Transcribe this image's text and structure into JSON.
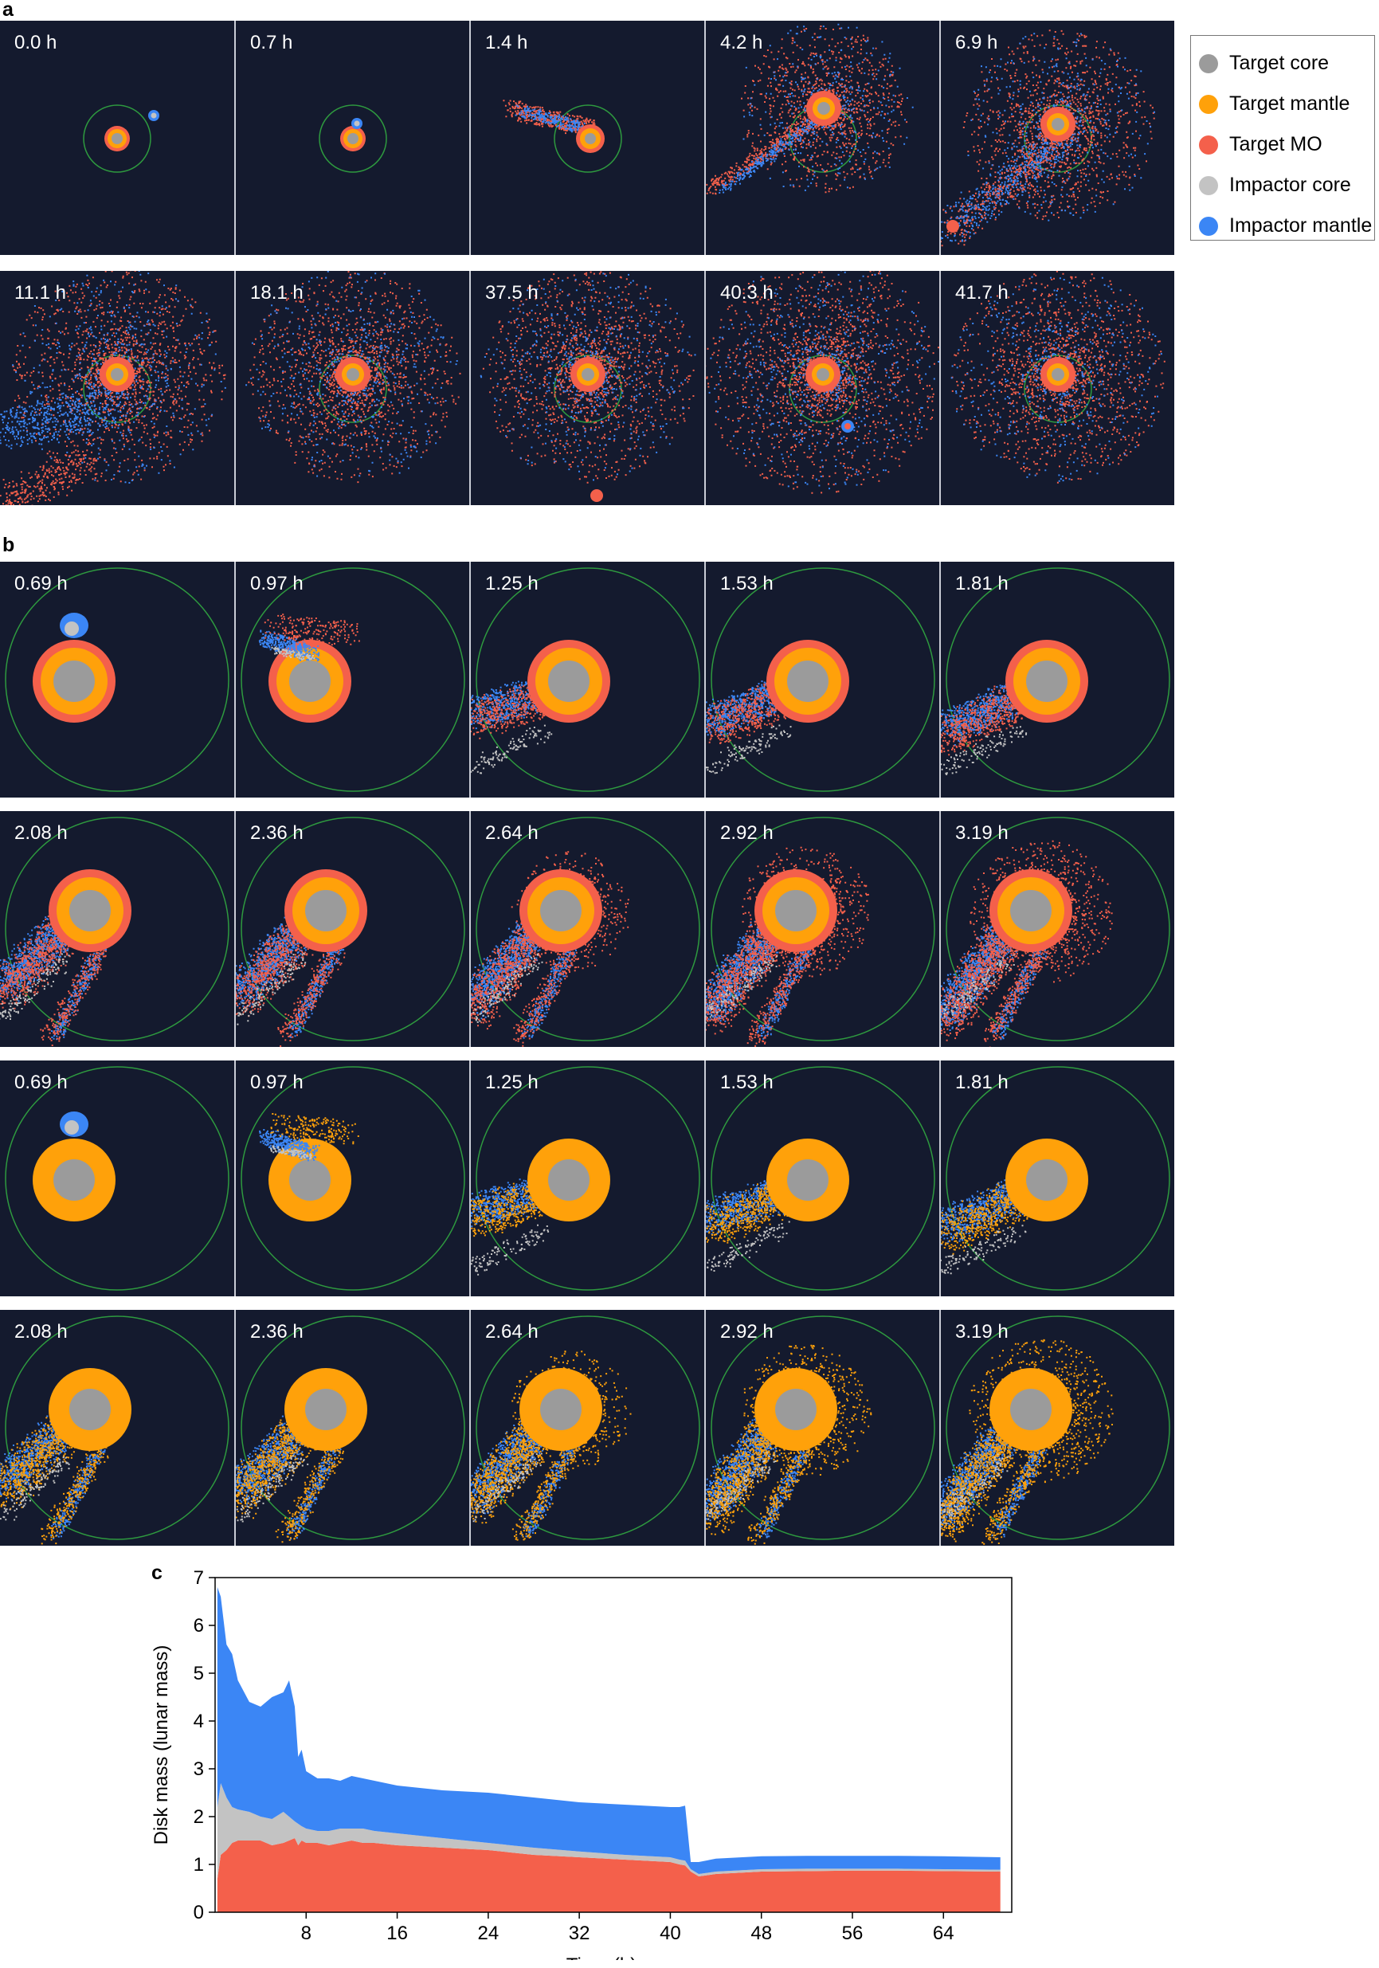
{
  "panel_labels": {
    "a": "a",
    "b": "b",
    "c": "c"
  },
  "colors": {
    "target_core": "#9b9b9b",
    "target_mantle": "#ffa10a",
    "target_mo": "#f4604b",
    "impactor_core": "#c3c3c3",
    "impactor_mantle": "#3b86f5",
    "panel_bg": "#141a2e",
    "roche_circle": "#2e9a3f"
  },
  "legend": {
    "items": [
      {
        "label": "Target core",
        "color": "#9b9b9b"
      },
      {
        "label": "Target mantle",
        "color": "#ffa10a"
      },
      {
        "label": "Target MO",
        "color": "#f4604b"
      },
      {
        "label": "Impactor core",
        "color": "#c3c3c3"
      },
      {
        "label": "Impactor mantle",
        "color": "#3b86f5"
      }
    ]
  },
  "section_a": {
    "row1": [
      "0.0 h",
      "0.7 h",
      "1.4 h",
      "4.2 h",
      "6.9 h"
    ],
    "row2": [
      "11.1 h",
      "18.1 h",
      "37.5 h",
      "40.3 h",
      "41.7 h"
    ]
  },
  "section_b": {
    "row1": [
      "0.69 h",
      "0.97 h",
      "1.25 h",
      "1.53 h",
      "1.81 h"
    ],
    "row2": [
      "2.08 h",
      "2.36 h",
      "2.64 h",
      "2.92 h",
      "3.19 h"
    ],
    "row3": [
      "0.69 h",
      "0.97 h",
      "1.25 h",
      "1.53 h",
      "1.81 h"
    ],
    "row4": [
      "2.08 h",
      "2.36 h",
      "2.64 h",
      "2.92 h",
      "3.19 h"
    ]
  },
  "chart_data": {
    "type": "area",
    "stacked": true,
    "xlabel": "Time (h)",
    "ylabel": "Disk mass (lunar mass)",
    "xlim": [
      0,
      70
    ],
    "ylim": [
      0,
      7
    ],
    "xticks": [
      8,
      16,
      24,
      32,
      40,
      48,
      56,
      64
    ],
    "yticks": [
      0,
      1,
      2,
      3,
      4,
      5,
      6,
      7
    ],
    "x": [
      0.2,
      0.5,
      1,
      1.5,
      2,
      3,
      4,
      5,
      6,
      6.5,
      7,
      7.3,
      7.6,
      8,
      9,
      10,
      11,
      12,
      13,
      14,
      16,
      20,
      24,
      28,
      32,
      36,
      40,
      40.8,
      41.3,
      41.8,
      42.5,
      44,
      48,
      52,
      56,
      60,
      64,
      69
    ],
    "series": [
      {
        "color": "#f4604b",
        "values": [
          0.7,
          1.2,
          1.3,
          1.45,
          1.5,
          1.5,
          1.5,
          1.4,
          1.45,
          1.5,
          1.55,
          1.4,
          1.5,
          1.45,
          1.45,
          1.4,
          1.45,
          1.5,
          1.45,
          1.45,
          1.4,
          1.35,
          1.3,
          1.2,
          1.15,
          1.1,
          1.05,
          1.0,
          0.98,
          0.85,
          0.75,
          0.8,
          0.85,
          0.86,
          0.87,
          0.87,
          0.86,
          0.85
        ]
      },
      {
        "color": "#c3c3c3",
        "values": [
          1.5,
          1.5,
          1.1,
          0.75,
          0.65,
          0.6,
          0.5,
          0.55,
          0.65,
          0.5,
          0.35,
          0.45,
          0.3,
          0.3,
          0.25,
          0.3,
          0.3,
          0.25,
          0.3,
          0.25,
          0.25,
          0.2,
          0.15,
          0.15,
          0.12,
          0.1,
          0.1,
          0.1,
          0.1,
          0.05,
          0.05,
          0.05,
          0.05,
          0.05,
          0.04,
          0.04,
          0.04,
          0.04
        ]
      },
      {
        "color": "#3b86f5",
        "values": [
          4.6,
          3.9,
          3.2,
          3.2,
          2.7,
          2.3,
          2.3,
          2.55,
          2.5,
          2.85,
          2.4,
          1.4,
          1.6,
          1.2,
          1.1,
          1.1,
          1.0,
          1.1,
          1.05,
          1.05,
          1.0,
          1.0,
          1.05,
          1.05,
          1.03,
          1.05,
          1.05,
          1.1,
          1.15,
          0.15,
          0.25,
          0.27,
          0.27,
          0.27,
          0.27,
          0.27,
          0.27,
          0.26
        ]
      }
    ]
  }
}
